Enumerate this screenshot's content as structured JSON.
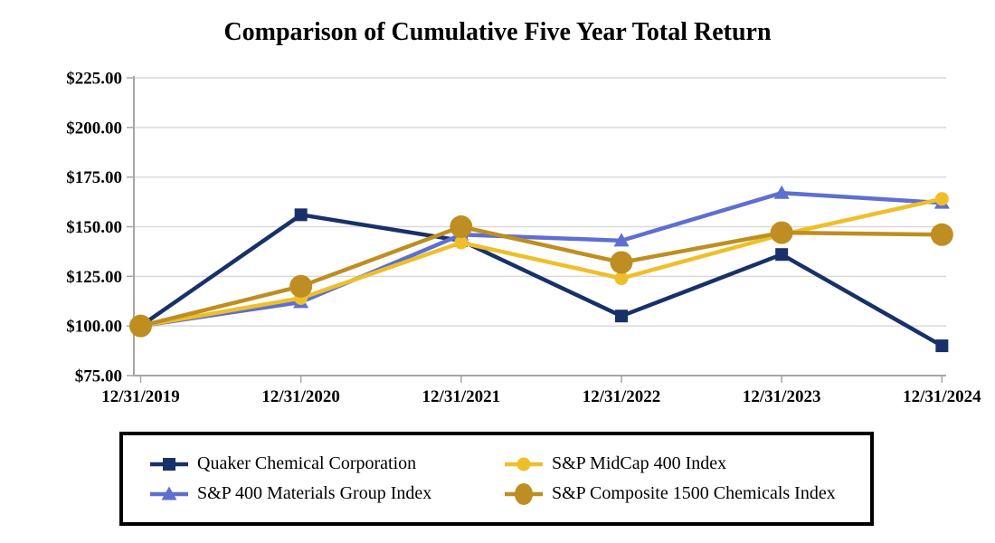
{
  "page": {
    "background_color": "#ffffff",
    "text_color": "#000000"
  },
  "chart_data": {
    "type": "line",
    "title": "Comparison of Cumulative Five Year Total Return",
    "xlabel": "",
    "ylabel": "",
    "x_labels": [
      "12/31/2019",
      "12/31/2020",
      "12/31/2021",
      "12/31/2022",
      "12/31/2023",
      "12/31/2024"
    ],
    "y_axis": {
      "min": 75,
      "max": 225,
      "ticks": [
        225,
        200,
        175,
        150,
        125,
        100,
        75
      ],
      "tick_labels": [
        "$225.00",
        "$200.00",
        "$175.00",
        "$150.00",
        "$125.00",
        "$100.00",
        "$75.00"
      ]
    },
    "grid": true,
    "legend_position": "bottom-boxed",
    "series": [
      {
        "name": "Quaker Chemical Corporation",
        "color": "#183169",
        "marker": "square",
        "values": [
          100,
          156,
          143,
          105,
          136,
          90
        ]
      },
      {
        "name": "S&P 400 Materials Group Index",
        "color": "#5E6FD1",
        "marker": "triangle",
        "values": [
          100,
          112,
          146,
          143,
          167,
          162
        ]
      },
      {
        "name": "S&P MidCap 400 Index",
        "color": "#EFBF29",
        "marker": "circle",
        "values": [
          100,
          114,
          142,
          124,
          146,
          164
        ]
      },
      {
        "name": "S&P Composite 1500 Chemicals Index",
        "color": "#BE8E22",
        "marker": "circle-large",
        "values": [
          100,
          120,
          150,
          132,
          147,
          146
        ]
      }
    ],
    "legend_order": [
      0,
      2,
      1,
      3
    ],
    "style": {
      "grid_color": "#D9D9D9",
      "axis_color": "#A6A6A6",
      "line_width": 4.5
    }
  }
}
